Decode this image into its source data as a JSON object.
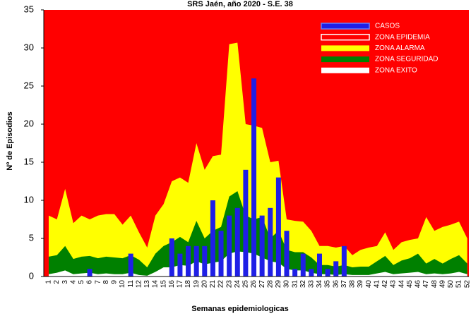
{
  "chart_data": {
    "type": "epidemic-channel",
    "title": "SRS Jaén, año 2020 - S.E. 38",
    "x_label": "Semanas epidemiologicas",
    "y_label": "Nº de Episodios",
    "categories": [
      "1",
      "2",
      "3",
      "4",
      "5",
      "6",
      "7",
      "8",
      "9",
      "10",
      "11",
      "12",
      "13",
      "14",
      "15",
      "16",
      "17",
      "18",
      "19",
      "20",
      "21",
      "22",
      "23",
      "24",
      "25",
      "26",
      "27",
      "28",
      "29",
      "30",
      "31",
      "32",
      "33",
      "34",
      "35",
      "36",
      "37",
      "38",
      "39",
      "40",
      "41",
      "42",
      "43",
      "44",
      "45",
      "46",
      "47",
      "48",
      "49",
      "50",
      "51",
      "52"
    ],
    "ylim": [
      0,
      35
    ],
    "yticks": [
      0,
      5,
      10,
      15,
      20,
      25,
      30,
      35
    ],
    "series": [
      {
        "name": "CASOS",
        "color": "#1f1fe6",
        "kind": "bar",
        "values": [
          0,
          0,
          0,
          0,
          0,
          1,
          0,
          0,
          0,
          0,
          3,
          0,
          0,
          0,
          0,
          5,
          3,
          4,
          4,
          4,
          10,
          6,
          8,
          9,
          14,
          26,
          8,
          9,
          13,
          6,
          1,
          3,
          1,
          3,
          1,
          2,
          4,
          0,
          null,
          null,
          null,
          null,
          null,
          null,
          null,
          null,
          null,
          null,
          null,
          null,
          null,
          null
        ]
      },
      {
        "name": "ZONA EPIDEMIA",
        "color": "#ff0000",
        "kind": "background"
      },
      {
        "name": "ZONA ALARMA",
        "color": "#ffff00",
        "kind": "area",
        "values": [
          8,
          7.5,
          11.5,
          7,
          8,
          7.5,
          8,
          8.2,
          8.2,
          6.8,
          8,
          5.8,
          3.8,
          8,
          9.5,
          12.5,
          13,
          12.3,
          17.5,
          14,
          15.8,
          16,
          30.5,
          30.7,
          20,
          19.8,
          19.5,
          15,
          15.2,
          7.5,
          7.3,
          7.2,
          6,
          4,
          4,
          3.8,
          4,
          2.8,
          3.5,
          3.8,
          4,
          5.8,
          3.5,
          4.5,
          4.8,
          5,
          7.8,
          6,
          6.5,
          6.8,
          7.2,
          5
        ]
      },
      {
        "name": "ZONA SEGURIDAD",
        "color": "#008000",
        "kind": "area",
        "values": [
          2.6,
          2.8,
          4,
          2.3,
          2.6,
          2.7,
          2.4,
          2.6,
          2.5,
          2.4,
          2.8,
          2.2,
          1.2,
          3,
          4,
          4.5,
          5.2,
          4.5,
          7.3,
          5,
          6,
          6.5,
          10.5,
          11.2,
          8,
          7.5,
          7.8,
          5,
          6,
          3.5,
          3.2,
          3.2,
          2.5,
          1.5,
          1.5,
          1.3,
          1.5,
          1.2,
          1.3,
          1.3,
          2,
          2.7,
          1.5,
          2.1,
          2.4,
          3,
          1.7,
          2.3,
          1.7,
          2.3,
          2.8,
          1.7
        ]
      },
      {
        "name": "ZONA EXITO",
        "color": "#ffffff",
        "kind": "area",
        "values": [
          0.3,
          0.5,
          0.8,
          0.3,
          0.4,
          0.5,
          0.3,
          0.4,
          0.3,
          0.3,
          0.5,
          0.2,
          0.1,
          0.6,
          1.2,
          1.2,
          1.5,
          1.4,
          2,
          1.6,
          1.8,
          2,
          3,
          3.3,
          3.2,
          3,
          2.5,
          2,
          1.8,
          1,
          0.8,
          0.8,
          0.5,
          0.3,
          0.3,
          0.2,
          0.3,
          0.2,
          0.2,
          0.2,
          0.4,
          0.6,
          0.3,
          0.4,
          0.5,
          0.6,
          0.3,
          0.4,
          0.3,
          0.4,
          0.6,
          0.3
        ]
      }
    ]
  }
}
